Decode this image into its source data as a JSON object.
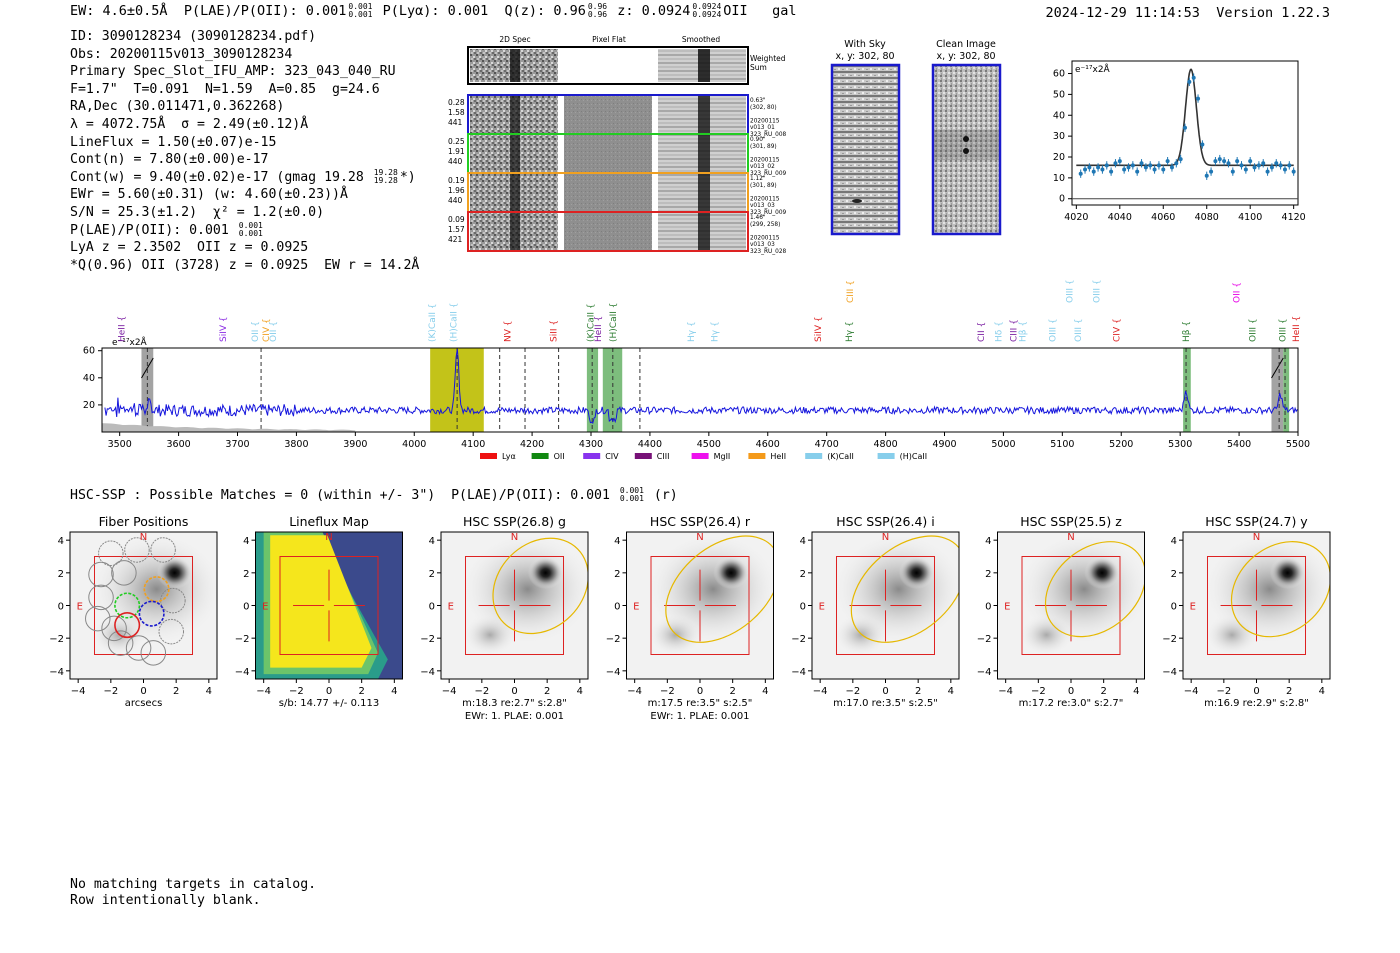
{
  "header": {
    "ew": "EW: 4.6±0.5Å",
    "plae": "P(LAE)/P(OII): 0.001",
    "plae_hi": "0.001",
    "plae_lo": "0.001",
    "plya": "P(Lyα): 0.001",
    "qz": "Q(z): 0.96",
    "qz_hi": "0.96",
    "qz_lo": "0.96",
    "z": "z: 0.0924",
    "z_hi": "0.0924",
    "z_lo": "0.0924",
    "line": "OII",
    "class": "gal",
    "timestamp": "2024-12-29 11:14:53",
    "version": "Version 1.22.3"
  },
  "info": {
    "id": "ID: 3090128234 (3090128234.pdf)",
    "obs": "Obs: 20200115v013_3090128234",
    "primary": "Primary Spec_Slot_IFU_AMP: 323_043_040_RU",
    "fit": "F=1.7\"  T=0.091  N=1.59  A=0.85  g=24.6",
    "radec": "RA,Dec (30.011471,0.362268)",
    "lambda": "λ = 4072.75Å  σ = 2.49(±0.12)Å",
    "lineflux": "LineFlux = 1.50(±0.07)e-15",
    "contn": "Cont(n) = 7.80(±0.00)e-17",
    "contw": "Cont(w) = 9.40(±0.02)e-17 (gmag 19.28",
    "contw_hi": "19.28",
    "contw_lo": "19.28",
    "contw_end": "*)",
    "ewr": "EWr = 5.60(±0.31) (w: 4.60(±0.23))Å",
    "sn": "S/N = 25.3(±1.2)  χ² = 1.2(±0.0)",
    "plae": "P(LAE)/P(OII): 0.001",
    "plae_hi": "0.001",
    "plae_lo": "0.001",
    "lya": "LyA z = 2.3502  OII z = 0.0925",
    "q": "*Q(0.96) OII (3728) z = 0.0925  EW r = 14.2Å"
  },
  "cutouts": {
    "col_labels": [
      "2D Spec",
      "Pixel Flat",
      "Smoothed"
    ],
    "weighted_sum": [
      "Weighted",
      "Sum"
    ],
    "rows": [
      {
        "left": [
          "0.28",
          "1.58",
          "441"
        ],
        "right": [
          "0.63\"",
          "(302, 80)",
          "",
          "20200115",
          "v013_01",
          "323_RU_008"
        ],
        "color": "#1a1acc"
      },
      {
        "left": [
          "0.25",
          "1.91",
          "440"
        ],
        "right": [
          "0.90\"",
          "(301, 89)",
          "",
          "20200115",
          "v013_02",
          "323_RU_009"
        ],
        "color": "#22cc22"
      },
      {
        "left": [
          "0.19",
          "1.96",
          "440"
        ],
        "right": [
          "1.12\"",
          "(301, 89)",
          "",
          "20200115",
          "v013_03",
          "323_RU_009"
        ],
        "color": "#f0a020"
      },
      {
        "left": [
          "0.09",
          "1.57",
          "421"
        ],
        "right": [
          "1.46\"",
          "(299, 258)",
          "",
          "20200115",
          "v013_03",
          "323_RU_028"
        ],
        "color": "#dd2222"
      }
    ]
  },
  "sky": {
    "with_sky_title": "With Sky",
    "with_sky_coords": "x, y: 302, 80",
    "clean_title": "Clean Image",
    "clean_coords": "x, y: 302, 80"
  },
  "colors": {
    "spectrum": "#1515dd",
    "fit_points": "#1f77b4",
    "box_blue": "#1a1acc",
    "red": "#dd2222",
    "olive": "#bdbd00",
    "green_band": "#5cad5c",
    "gray_band": "#999999",
    "yellow_ellipse": "#e6b800"
  },
  "chart_data": [
    {
      "type": "line",
      "name": "emission-line-fit",
      "unit_label": "e⁻¹⁷x2Å",
      "xlim": [
        4018,
        4122
      ],
      "ylim": [
        -3,
        66
      ],
      "xticks": [
        4020,
        4040,
        4060,
        4080,
        4100,
        4120
      ],
      "yticks": [
        0,
        10,
        20,
        30,
        40,
        50,
        60
      ],
      "points_x": [
        4022,
        4024,
        4026,
        4028,
        4030,
        4032,
        4034,
        4036,
        4038,
        4040,
        4042,
        4044,
        4046,
        4048,
        4050,
        4052,
        4054,
        4056,
        4058,
        4060,
        4062,
        4064,
        4066,
        4068,
        4070,
        4072,
        4074,
        4076,
        4078,
        4080,
        4082,
        4084,
        4086,
        4088,
        4090,
        4092,
        4094,
        4096,
        4098,
        4100,
        4102,
        4104,
        4106,
        4108,
        4110,
        4112,
        4114,
        4116,
        4118,
        4120
      ],
      "points_y": [
        12,
        14,
        15,
        13,
        15,
        14,
        16,
        13,
        17,
        18,
        14,
        15,
        16,
        13,
        17,
        15,
        16,
        14,
        16,
        14,
        18,
        15,
        17,
        19,
        34,
        56,
        58,
        48,
        26,
        11,
        13,
        18,
        19,
        18,
        17,
        13,
        18,
        16,
        14,
        18,
        15,
        16,
        17,
        13,
        15,
        17,
        16,
        14,
        16,
        13
      ],
      "fit_center": 4072.75,
      "fit_sigma": 2.49,
      "fit_continuum": 16,
      "fit_peak": 62
    },
    {
      "type": "line",
      "name": "full-spectrum",
      "unit_label": "e⁻¹⁷x2Å",
      "xlim": [
        3470,
        5500
      ],
      "ylim": [
        0,
        62
      ],
      "xticks": [
        3500,
        3600,
        3700,
        3800,
        3900,
        4000,
        4100,
        4200,
        4300,
        4400,
        4500,
        4600,
        4700,
        4800,
        4900,
        5000,
        5100,
        5200,
        5300,
        5400,
        5500
      ],
      "yticks": [
        20,
        40,
        60
      ],
      "continuum": 16,
      "peaks": [
        {
          "x": 4072.75,
          "amp": 45,
          "sigma": 3
        },
        {
          "x": 5310,
          "amp": 15,
          "sigma": 3
        },
        {
          "x": 5470,
          "amp": 12,
          "sigma": 3
        }
      ],
      "bands": [
        {
          "x0": 3537,
          "x1": 3557,
          "kind": "gray"
        },
        {
          "x0": 4027,
          "x1": 4118,
          "kind": "olive"
        },
        {
          "x0": 4293,
          "x1": 4312,
          "kind": "green"
        },
        {
          "x0": 4320,
          "x1": 4353,
          "kind": "green"
        },
        {
          "x0": 5305,
          "x1": 5318,
          "kind": "green"
        },
        {
          "x0": 5455,
          "x1": 5475,
          "kind": "gray"
        },
        {
          "x0": 5475,
          "x1": 5485,
          "kind": "green"
        }
      ],
      "dashed_lines": [
        3547,
        3740,
        4072.75,
        4145,
        4188,
        4245,
        4302,
        4337,
        4383,
        5310,
        5468,
        5478
      ],
      "line_labels": [
        {
          "text": "HeII",
          "x": 3503,
          "row": 0,
          "color": "#7b1fa2"
        },
        {
          "text": "SiIV",
          "x": 3675,
          "row": 0,
          "color": "#8a2be2"
        },
        {
          "text": "OII",
          "x": 3730,
          "row": 0,
          "color": "#87ceeb"
        },
        {
          "text": "CIV",
          "x": 3748,
          "row": 0,
          "color": "#f0a020"
        },
        {
          "text": "OII",
          "x": 3760,
          "row": 0,
          "color": "#87ceeb"
        },
        {
          "text": "(K)CaII",
          "x": 4030,
          "row": 0,
          "color": "#87ceeb"
        },
        {
          "text": "(H)CaII",
          "x": 4067,
          "row": 0,
          "color": "#87ceeb"
        },
        {
          "text": "NV",
          "x": 4158,
          "row": 0,
          "color": "#dd2222"
        },
        {
          "text": "SiII",
          "x": 4236,
          "row": 0,
          "color": "#dd2222"
        },
        {
          "text": "(K)CaII",
          "x": 4299,
          "row": 0,
          "color": "#2e7d32"
        },
        {
          "text": "HeII",
          "x": 4312,
          "row": 0,
          "color": "#7b1fa2"
        },
        {
          "text": "(H)CaII",
          "x": 4337,
          "row": 0,
          "color": "#2e7d32"
        },
        {
          "text": "Hγ",
          "x": 4470,
          "row": 0,
          "color": "#87ceeb"
        },
        {
          "text": "Hγ",
          "x": 4510,
          "row": 0,
          "color": "#87ceeb"
        },
        {
          "text": "SiIV",
          "x": 4685,
          "row": 0,
          "color": "#dd2222"
        },
        {
          "text": "Hγ",
          "x": 4738,
          "row": 0,
          "color": "#2e7d32"
        },
        {
          "text": "CIII",
          "x": 4740,
          "row": 1,
          "color": "#f0a020"
        },
        {
          "text": "CII",
          "x": 4962,
          "row": 0,
          "color": "#7b1fa2"
        },
        {
          "text": "Hδ",
          "x": 4992,
          "row": 0,
          "color": "#87ceeb"
        },
        {
          "text": "CIII",
          "x": 5017,
          "row": 0,
          "color": "#7b1fa2"
        },
        {
          "text": "Hβ",
          "x": 5032,
          "row": 0,
          "color": "#87ceeb"
        },
        {
          "text": "OIII",
          "x": 5083,
          "row": 0,
          "color": "#87ceeb"
        },
        {
          "text": "OIII",
          "x": 5112,
          "row": 1,
          "color": "#87ceeb"
        },
        {
          "text": "OIII",
          "x": 5158,
          "row": 1,
          "color": "#87ceeb"
        },
        {
          "text": "OIII",
          "x": 5127,
          "row": 0,
          "color": "#87ceeb"
        },
        {
          "text": "CIV",
          "x": 5192,
          "row": 0,
          "color": "#dd2222"
        },
        {
          "text": "Hβ",
          "x": 5310,
          "row": 0,
          "color": "#2e7d32"
        },
        {
          "text": "OII",
          "x": 5396,
          "row": 1,
          "color": "#e600e6"
        },
        {
          "text": "OIII",
          "x": 5423,
          "row": 0,
          "color": "#2e7d32"
        },
        {
          "text": "OIII",
          "x": 5474,
          "row": 0,
          "color": "#2e7d32"
        },
        {
          "text": "HeII",
          "x": 5497,
          "row": 0,
          "color": "#dd2222"
        }
      ],
      "legend": [
        {
          "label": "Lyα",
          "color": "#ee1111"
        },
        {
          "label": "OII",
          "color": "#118811"
        },
        {
          "label": "CIV",
          "color": "#8833ee"
        },
        {
          "label": "CIII",
          "color": "#771177"
        },
        {
          "label": "MgII",
          "color": "#ee11ee"
        },
        {
          "label": "HeII",
          "color": "#f49a1a"
        },
        {
          "label": "(K)CaII",
          "color": "#87ceeb"
        },
        {
          "label": "(H)CaII",
          "color": "#87ceeb"
        }
      ]
    },
    {
      "type": "heatmap",
      "name": "imaging-panels",
      "axis_range": [
        -4.5,
        4.5
      ],
      "ticks": [
        -4,
        -2,
        0,
        2,
        4
      ],
      "panels": [
        {
          "title": "Fiber Positions",
          "xlabel": "arcsecs",
          "sub1": "",
          "sub2": "",
          "kind": "fiber"
        },
        {
          "title": "Lineflux Map",
          "xlabel": "s/b: 14.77 +/- 0.113",
          "sub1": "",
          "sub2": "",
          "kind": "lineflux"
        },
        {
          "title": "HSC SSP(26.8) g",
          "xlabel": "m:18.3  re:2.7\"  s:2.8\"",
          "sub1": "EWr: 1. PLAE: 0.001",
          "kind": "hsc",
          "ell": [
            1.6,
            1.2,
            3.2,
            2.6,
            -45
          ]
        },
        {
          "title": "HSC SSP(26.4) r",
          "xlabel": "m:17.5  re:3.5\"  s:2.5\"",
          "sub1": "EWr: 1. PLAE: 0.001",
          "kind": "hsc",
          "ell": [
            1.4,
            1.0,
            4.0,
            2.6,
            -40
          ]
        },
        {
          "title": "HSC SSP(26.4) i",
          "xlabel": "m:17.0  re:3.5\"  s:2.5\"",
          "sub1": "",
          "kind": "hsc",
          "ell": [
            1.4,
            1.0,
            4.0,
            2.6,
            -40
          ]
        },
        {
          "title": "HSC SSP(25.5) z",
          "xlabel": "m:17.2  re:3.0\"  s:2.7\"",
          "sub1": "",
          "kind": "hsc",
          "ell": [
            1.5,
            1.0,
            3.4,
            2.5,
            -40
          ]
        },
        {
          "title": "HSC SSP(24.7) y",
          "xlabel": "m:16.9  re:2.9\"  s:2.8\"",
          "sub1": "",
          "kind": "hsc",
          "ell": [
            1.5,
            1.0,
            3.3,
            2.6,
            -40
          ]
        }
      ],
      "compass_n": "N",
      "compass_e": "E",
      "source_position": [
        1.9,
        2.0
      ],
      "fibers": [
        {
          "x": -1.0,
          "y": 0.0,
          "color": "#22cc22",
          "dashed": true
        },
        {
          "x": 0.8,
          "y": 1.0,
          "color": "#f0a020",
          "dashed": true
        },
        {
          "x": 0.5,
          "y": -0.5,
          "color": "#1a1acc",
          "dashed": true
        },
        {
          "x": -1.0,
          "y": -1.2,
          "color": "#dd2222",
          "dashed": false
        }
      ]
    }
  ],
  "hsc": {
    "line_text": "HSC-SSP : Possible Matches = 0 (within +/- 3\")  P(LAE)/P(OII): 0.001",
    "hi": "0.001",
    "lo": "0.001",
    "band": "(r)"
  },
  "footer": {
    "line1": "No matching targets in catalog.",
    "line2": "Row intentionally blank."
  }
}
